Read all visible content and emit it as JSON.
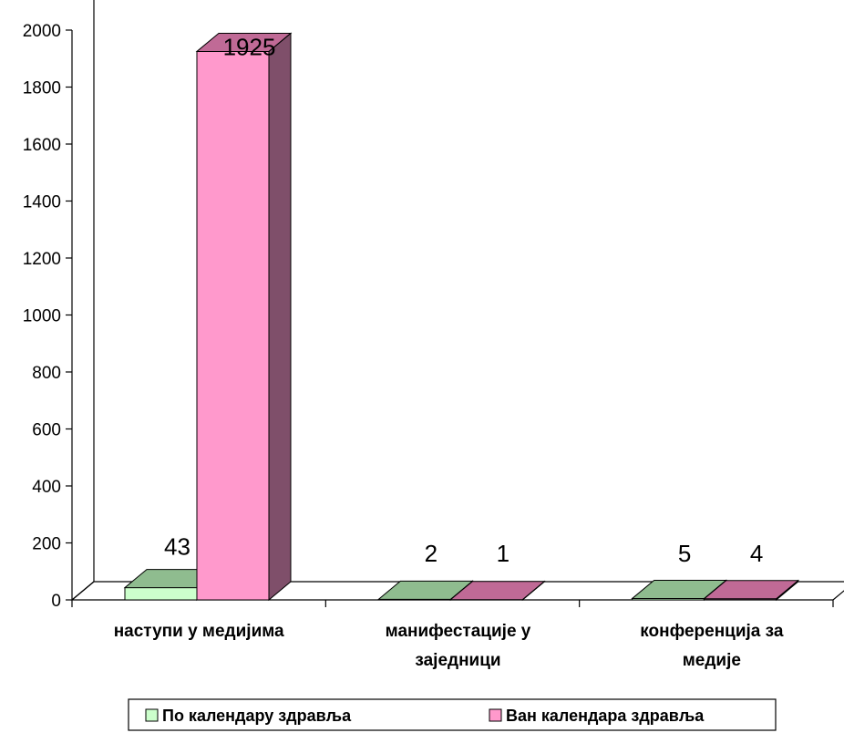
{
  "chart_data": {
    "type": "bar",
    "title": "",
    "xlabel": "",
    "ylabel": "",
    "ylim": [
      0,
      2000
    ],
    "yticks": [
      0,
      200,
      400,
      600,
      800,
      1000,
      1200,
      1400,
      1600,
      1800,
      2000
    ],
    "categories": [
      [
        "наступи у медијима"
      ],
      [
        "манифестације у",
        "заједници"
      ],
      [
        "конференција за",
        "медије"
      ]
    ],
    "series": [
      {
        "name": "По календару здравља",
        "values": [
          43,
          2,
          5
        ],
        "colors": {
          "front": "#ccffcc",
          "top": "#8fbc8f",
          "side": "#6e9a6e"
        }
      },
      {
        "name": "Ван календара здравља",
        "values": [
          1925,
          1,
          4
        ],
        "colors": {
          "front": "#ff99cc",
          "top": "#c06a96",
          "side": "#7f4f6a"
        }
      }
    ],
    "style": "3d-clustered-column",
    "legend": "bottom",
    "grid": false
  }
}
